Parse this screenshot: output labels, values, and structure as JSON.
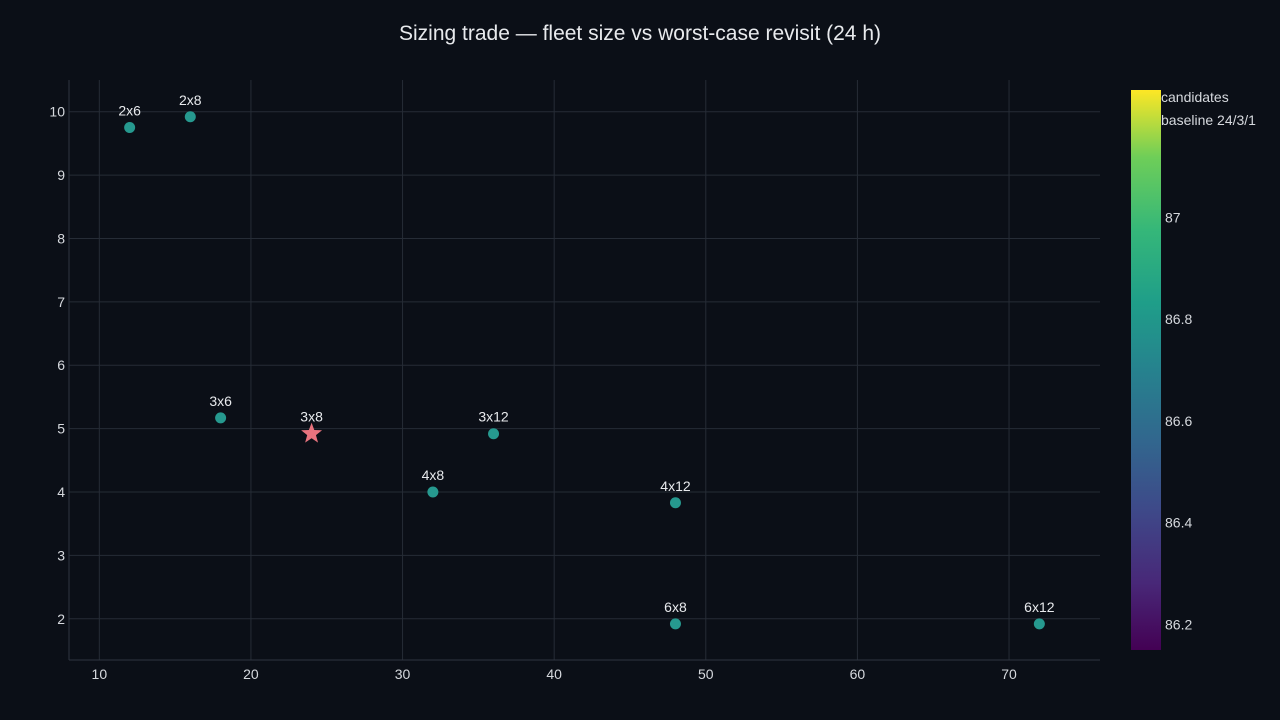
{
  "chart_data": {
    "type": "scatter",
    "title": "Sizing trade — fleet size vs worst-case revisit (24 h)",
    "xlabel": "",
    "ylabel": "",
    "xlim": [
      8,
      76
    ],
    "ylim": [
      1.35,
      10.5
    ],
    "grid": true,
    "x_ticks": [
      10,
      20,
      30,
      40,
      50,
      60,
      70
    ],
    "y_ticks": [
      2,
      3,
      4,
      5,
      6,
      7,
      8,
      9,
      10
    ],
    "series": [
      {
        "name": "candidates",
        "marker": "circle",
        "color": "#26998f",
        "points": [
          {
            "label": "2x6",
            "x": 12,
            "y": 9.75
          },
          {
            "label": "2x8",
            "x": 16,
            "y": 9.92
          },
          {
            "label": "3x6",
            "x": 18,
            "y": 5.17
          },
          {
            "label": "3x12",
            "x": 36,
            "y": 4.92
          },
          {
            "label": "4x8",
            "x": 32,
            "y": 4.0
          },
          {
            "label": "4x12",
            "x": 48,
            "y": 3.83
          },
          {
            "label": "6x8",
            "x": 48,
            "y": 1.92
          },
          {
            "label": "6x12",
            "x": 72,
            "y": 1.92
          }
        ]
      },
      {
        "name": "baseline 24/3/1",
        "marker": "star",
        "color": "#e8737e",
        "points": [
          {
            "label": "3x8",
            "x": 24,
            "y": 4.92
          }
        ]
      }
    ],
    "colorbar": {
      "colorscale": "viridis",
      "range": [
        86.15,
        87.25
      ],
      "ticks": [
        86.2,
        86.4,
        86.6,
        86.8,
        87
      ],
      "entries": [
        "candidates",
        "baseline 24/3/1"
      ]
    }
  },
  "colors": {
    "background": "#0b0f17",
    "grid": "#262c36",
    "axis_line": "#2f3540",
    "text": "#e8eaed",
    "candidate": "#26998f",
    "baseline": "#e8737e"
  }
}
